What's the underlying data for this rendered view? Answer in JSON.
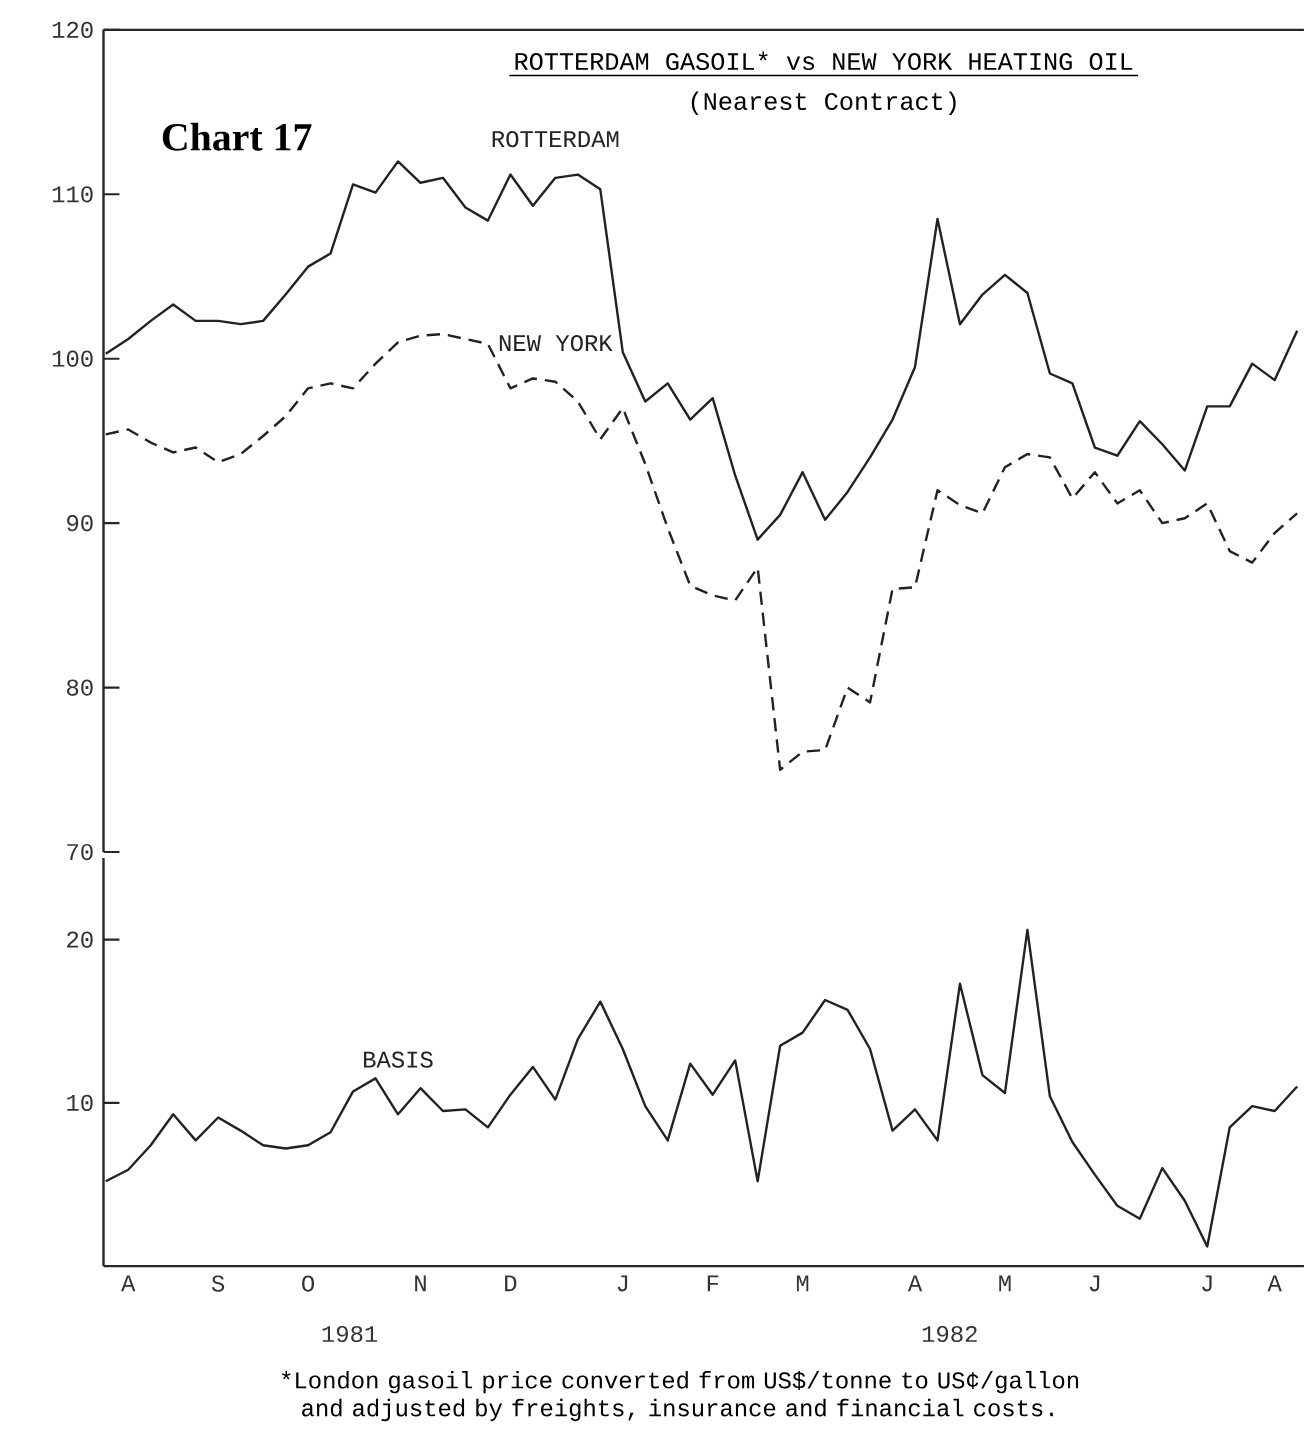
{
  "chart_data": [
    {
      "type": "line",
      "title": "ROTTERDAM GASOIL* vs NEW YORK HEATING OIL",
      "subtitle": "(Nearest Contract)",
      "annotations": [
        "Chart 17"
      ],
      "categories": [
        null,
        null,
        null,
        null,
        null,
        null,
        null,
        null,
        null,
        null,
        null,
        null,
        null,
        null,
        null,
        null,
        null,
        null,
        null,
        null,
        null,
        null,
        null,
        null,
        null,
        null,
        null,
        null,
        null,
        null,
        null,
        null,
        null,
        null,
        null,
        null,
        null,
        null,
        null,
        null,
        null,
        null,
        null,
        null,
        null,
        null,
        null,
        null,
        null,
        null,
        null,
        null,
        null,
        null
      ],
      "series": [
        {
          "name": "ROTTERDAM",
          "color": "#222222",
          "line_style": "solid",
          "values": [
            100.3,
            101.2,
            102.3,
            103.3,
            102.3,
            102.3,
            102.1,
            102.3,
            103.9,
            105.6,
            106.4,
            110.6,
            110.1,
            112.0,
            110.7,
            111.0,
            109.2,
            108.4,
            111.2,
            109.3,
            111.0,
            111.2,
            110.3,
            100.4,
            97.4,
            98.5,
            96.3,
            97.6,
            92.9,
            89.0,
            90.5,
            93.1,
            90.2,
            91.9,
            94.0,
            96.3,
            99.5,
            108.5,
            102.1,
            103.9,
            105.1,
            104.0,
            99.1,
            98.5,
            94.6,
            94.1,
            96.2,
            94.8,
            93.2,
            97.1,
            97.1,
            99.7,
            98.7,
            101.7
          ]
        },
        {
          "name": "NEW YORK",
          "color": "#222222",
          "line_style": "dashed",
          "values": [
            95.4,
            95.7,
            94.9,
            94.3,
            94.6,
            93.7,
            94.2,
            95.3,
            96.5,
            98.2,
            98.5,
            98.2,
            99.7,
            101.0,
            101.4,
            101.5,
            101.2,
            100.9,
            98.2,
            98.8,
            98.6,
            97.4,
            95.1,
            97.0,
            93.6,
            89.7,
            86.2,
            85.6,
            85.3,
            87.3,
            75.0,
            76.1,
            76.2,
            80.0,
            79.1,
            86.0,
            86.1,
            92.0,
            91.1,
            90.6,
            93.4,
            94.2,
            94.0,
            91.5,
            93.1,
            91.2,
            92.0,
            90.0,
            90.3,
            91.2,
            88.3,
            87.6,
            89.4,
            90.6
          ]
        }
      ],
      "ylim": [
        70,
        120
      ],
      "yticks": [
        70,
        80,
        90,
        100,
        110,
        120
      ],
      "tick_labels": "y"
    },
    {
      "type": "line",
      "annotations": [
        "1981",
        "1982",
        "*London gasoil price converted from US$/tonne to US¢/gallon and adjusted by freights, insurance and financial costs."
      ],
      "categories": [
        null,
        "A",
        null,
        null,
        null,
        "S",
        null,
        null,
        null,
        "O",
        null,
        null,
        null,
        null,
        "N",
        null,
        null,
        null,
        "D",
        null,
        null,
        null,
        null,
        "J",
        null,
        null,
        null,
        "F",
        null,
        null,
        null,
        "M",
        null,
        null,
        null,
        null,
        "A",
        null,
        null,
        null,
        "M",
        null,
        null,
        null,
        "J",
        null,
        null,
        null,
        null,
        "J",
        null,
        null,
        "A",
        null
      ],
      "series": [
        {
          "name": "BASIS",
          "color": "#222222",
          "line_style": "solid",
          "values": [
            5.2,
            5.9,
            7.4,
            9.3,
            7.7,
            9.1,
            8.3,
            7.4,
            7.2,
            7.4,
            8.2,
            10.7,
            11.5,
            9.3,
            10.9,
            9.5,
            9.6,
            8.5,
            10.5,
            12.2,
            10.2,
            13.9,
            16.2,
            13.3,
            9.8,
            7.7,
            12.4,
            10.5,
            12.6,
            5.2,
            13.5,
            14.3,
            16.3,
            15.7,
            13.3,
            8.3,
            9.6,
            7.7,
            17.3,
            11.7,
            10.6,
            20.6,
            10.4,
            7.6,
            5.6,
            3.7,
            2.9,
            6.0,
            4.0,
            1.2,
            8.5,
            9.8,
            9.5,
            11.0
          ]
        }
      ],
      "ylim": [
        0,
        25
      ],
      "yticks": [
        10,
        20
      ]
    }
  ]
}
